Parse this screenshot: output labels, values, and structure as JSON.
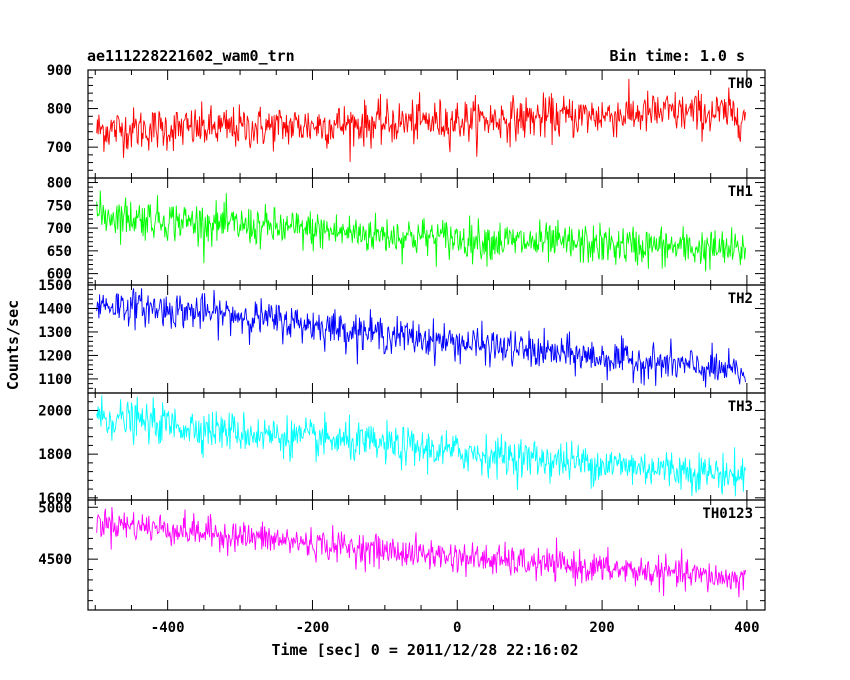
{
  "header": {
    "left": "ae111228221602_wam0_trn",
    "right": "Bin time: 1.0 s"
  },
  "chart_data": {
    "type": "line",
    "title": "ae111228221602_wam0_trn",
    "bin_time": "Bin time: 1.0 s",
    "xlabel": "Time [sec] 0 = 2011/12/28 22:16:02",
    "ylabel": "Counts/sec",
    "xlim": [
      -510,
      425
    ],
    "x_ticks": [
      -400,
      -200,
      0,
      200,
      400
    ],
    "x_range": [
      -498,
      398
    ],
    "grid": false,
    "panels": [
      {
        "name": "TH0",
        "color": "#ff0000",
        "ylim": [
          620,
          900
        ],
        "y_ticks": [
          700,
          800,
          900
        ],
        "trend": [
          [
            -498,
            745
          ],
          [
            -300,
            750
          ],
          [
            -100,
            762
          ],
          [
            100,
            775
          ],
          [
            300,
            790
          ],
          [
            398,
            785
          ]
        ],
        "noise_sd": 28
      },
      {
        "name": "TH1",
        "color": "#00ff00",
        "ylim": [
          575,
          810
        ],
        "y_ticks": [
          600,
          650,
          700,
          750,
          800
        ],
        "trend": [
          [
            -498,
            730
          ],
          [
            -300,
            705
          ],
          [
            -100,
            685
          ],
          [
            100,
            668
          ],
          [
            300,
            658
          ],
          [
            398,
            650
          ]
        ],
        "noise_sd": 22
      },
      {
        "name": "TH2",
        "color": "#0000ff",
        "ylim": [
          1040,
          1500
        ],
        "y_ticks": [
          1100,
          1200,
          1300,
          1400,
          1500
        ],
        "trend": [
          [
            -498,
            1420
          ],
          [
            -300,
            1370
          ],
          [
            -100,
            1290
          ],
          [
            100,
            1220
          ],
          [
            300,
            1160
          ],
          [
            398,
            1125
          ]
        ],
        "noise_sd": 38
      },
      {
        "name": "TH3",
        "color": "#00ffff",
        "ylim": [
          1590,
          2080
        ],
        "y_ticks": [
          1600,
          1800,
          2000
        ],
        "trend": [
          [
            -498,
            1970
          ],
          [
            -300,
            1900
          ],
          [
            -100,
            1840
          ],
          [
            100,
            1780
          ],
          [
            300,
            1730
          ],
          [
            398,
            1700
          ]
        ],
        "noise_sd": 45
      },
      {
        "name": "TH0123",
        "color": "#ff00ff",
        "ylim": [
          4010,
          5070
        ],
        "y_ticks": [
          4500,
          5000
        ],
        "trend": [
          [
            -498,
            4860
          ],
          [
            -300,
            4720
          ],
          [
            -100,
            4580
          ],
          [
            100,
            4460
          ],
          [
            300,
            4360
          ],
          [
            398,
            4300
          ]
        ],
        "noise_sd": 75
      }
    ]
  }
}
